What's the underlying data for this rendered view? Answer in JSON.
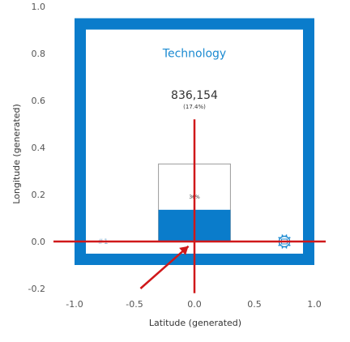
{
  "chart_data": {
    "type": "scatter",
    "title": "",
    "xlabel": "Latitude (generated)",
    "ylabel": "Longitude (generated)",
    "xlim": [
      -1.2,
      1.1
    ],
    "ylim": [
      -0.2,
      1.0
    ],
    "x_ticks": [
      {
        "value": -1.0,
        "label": "-1.0"
      },
      {
        "value": -0.5,
        "label": "-0.5"
      },
      {
        "value": 0.0,
        "label": "0.0"
      },
      {
        "value": 0.5,
        "label": "0.5"
      },
      {
        "value": 1.0,
        "label": "1.0"
      }
    ],
    "y_ticks": [
      {
        "value": -0.2,
        "label": "-0.2"
      },
      {
        "value": 0.0,
        "label": "0.0"
      },
      {
        "value": 0.2,
        "label": "0.2"
      },
      {
        "value": 0.4,
        "label": "0.4"
      },
      {
        "value": 0.6,
        "label": "0.6"
      },
      {
        "value": 0.8,
        "label": "0.8"
      },
      {
        "value": 1.0,
        "label": "1.0"
      }
    ],
    "grid": false,
    "panel": {
      "title": "Technology",
      "x_range": [
        -1.0,
        1.0
      ],
      "y_range": [
        -0.1,
        0.95
      ]
    },
    "points": [
      {
        "x": -0.75,
        "y": 0.0,
        "label": "1",
        "marker": "#"
      },
      {
        "x": 0.75,
        "y": 0.0,
        "label": "",
        "marker": "gear"
      }
    ],
    "bar": {
      "x_range": [
        -0.3,
        0.3
      ],
      "outline_top": 0.33,
      "fill_top": 0.135,
      "fill_fraction": 0.36,
      "inner_label": "36%"
    },
    "total": {
      "value": "836,154",
      "percent": "(17.4%)"
    },
    "crosshair": {
      "x": 0.0,
      "y": 0.0,
      "v_top": 0.52,
      "v_bottom": -0.22
    },
    "pointer": {
      "from": [
        -0.45,
        -0.2
      ],
      "to": [
        -0.05,
        -0.02
      ]
    },
    "colors": {
      "panel_frame": "#0a7ccb",
      "bar_fill": "#0a7ccb",
      "bar_outline": "#9a9a9a",
      "crosshair": "#d0181a",
      "title": "#1b8ad1",
      "marker": "#1b8ad1"
    }
  }
}
